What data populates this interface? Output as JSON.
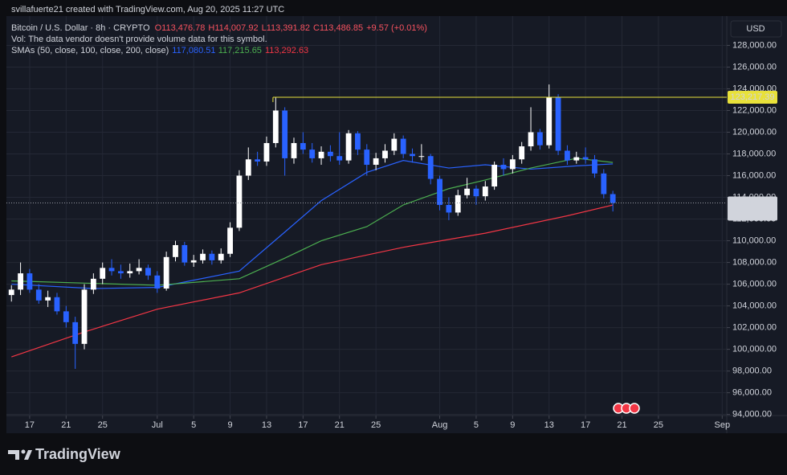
{
  "chart_data": {
    "type": "candlestick",
    "title": "svillafuerte21 created with TradingView.com, Aug 20, 2025 11:27 UTC",
    "symbol": "Bitcoin / U.S. Dollar · 8h · CRYPTO",
    "ohlc_labels": [
      "O113,476.78",
      "H114,007.92",
      "L113,391.82",
      "C113,486.85",
      "+9.57 (+0.01%)"
    ],
    "volume_note": "Vol: The data vendor doesn't provide volume data for this symbol.",
    "sma_legend": "SMAs (50, close, 100, close, 200, close)",
    "sma_value_labels": [
      "117,080.51",
      "117,215.65",
      "113,292.63"
    ],
    "currency": "USD",
    "brand": "TradingView",
    "up_color": "#ffffff",
    "down_color": "#2962ff",
    "x": [
      166,
      167,
      168,
      169,
      170,
      171,
      172,
      173,
      174,
      175,
      176,
      177,
      178,
      179,
      180,
      181,
      182,
      183,
      184,
      185,
      186,
      187,
      188,
      189,
      190,
      191,
      192,
      193,
      194,
      195,
      196,
      197,
      198,
      199,
      200,
      201,
      202,
      203,
      204,
      205,
      206,
      207,
      208,
      209,
      210,
      211,
      212,
      213,
      214,
      215,
      216,
      217,
      218,
      219,
      220,
      221,
      222,
      223,
      224,
      225,
      226,
      227,
      228,
      229,
      230,
      231,
      232
    ],
    "open": [
      105000,
      105500,
      107000,
      105500,
      104500,
      104800,
      103500,
      102500,
      100500,
      105500,
      106500,
      107500,
      107200,
      107000,
      107200,
      107500,
      106800,
      105600,
      108500,
      109600,
      108000,
      108200,
      108800,
      108200,
      108800,
      111200,
      116000,
      117500,
      117300,
      119000,
      122000,
      117600,
      119000,
      118400,
      117600,
      118200,
      117800,
      117400,
      119900,
      118400,
      117000,
      117600,
      118300,
      119400,
      118000,
      117800,
      117800,
      115700,
      113300,
      112600,
      114200,
      114800,
      114100,
      115000,
      117000,
      116600,
      117500,
      118700,
      120000,
      118800,
      123200,
      118300,
      117400,
      117700,
      117500,
      116200,
      114300
    ],
    "high": [
      105900,
      108000,
      107400,
      106000,
      105400,
      105200,
      104000,
      103000,
      106000,
      107000,
      108000,
      108300,
      107800,
      107900,
      108300,
      107800,
      107200,
      109000,
      110000,
      109900,
      108700,
      109200,
      109100,
      109300,
      111700,
      116500,
      118600,
      118200,
      119600,
      123200,
      122300,
      119500,
      120000,
      119000,
      118700,
      118800,
      120000,
      120200,
      120100,
      118900,
      118100,
      118900,
      119900,
      119700,
      118500,
      118900,
      118000,
      116000,
      114000,
      114700,
      115800,
      115100,
      115500,
      117300,
      117600,
      117900,
      119100,
      122300,
      120300,
      124400,
      123500,
      118800,
      118200,
      118600,
      117900,
      116600,
      114600
    ],
    "low": [
      104400,
      105000,
      105200,
      104200,
      103900,
      103200,
      102000,
      98200,
      100000,
      105100,
      106000,
      106800,
      106500,
      106600,
      106900,
      106400,
      105200,
      105400,
      108100,
      107700,
      107600,
      107900,
      107800,
      107900,
      108500,
      110900,
      115600,
      116900,
      116900,
      118600,
      116000,
      117100,
      118000,
      117200,
      117000,
      117300,
      117000,
      117100,
      117900,
      116000,
      116500,
      117200,
      117900,
      117600,
      117200,
      117400,
      115200,
      112800,
      111900,
      112300,
      113900,
      113300,
      113700,
      114700,
      116000,
      116200,
      117100,
      118300,
      118400,
      118500,
      117900,
      117000,
      117100,
      117100,
      115800,
      113900,
      112700
    ],
    "close": [
      105500,
      107000,
      105500,
      104500,
      104800,
      103500,
      102500,
      100500,
      105500,
      106500,
      107500,
      107200,
      107000,
      107200,
      107500,
      106800,
      105600,
      108500,
      109600,
      108000,
      108200,
      108800,
      108200,
      108800,
      111200,
      116000,
      117500,
      117300,
      119000,
      122000,
      117600,
      119000,
      118400,
      117600,
      118200,
      117800,
      117400,
      119900,
      118400,
      117000,
      117600,
      118300,
      119400,
      118000,
      117800,
      117800,
      115700,
      113300,
      112600,
      114200,
      114800,
      114100,
      115000,
      117000,
      116600,
      117500,
      118700,
      120000,
      118800,
      123200,
      118300,
      117400,
      117700,
      117500,
      116200,
      114300,
      113486.85
    ],
    "series": [
      {
        "name": "SMA 50",
        "color": "#2962ff",
        "x": [
          166,
          175,
          182,
          191,
          196,
          200,
          205,
          209,
          214,
          218,
          223,
          228,
          232
        ],
        "values": [
          106000,
          105600,
          105700,
          107200,
          110800,
          113700,
          116300,
          117400,
          116700,
          117000,
          116600,
          116900,
          117080.51
        ]
      },
      {
        "name": "SMA 100",
        "color": "#4caf50",
        "x": [
          166,
          182,
          191,
          196,
          200,
          205,
          209,
          214,
          218,
          223,
          228,
          232
        ],
        "values": [
          106300,
          105900,
          106500,
          108400,
          110000,
          111300,
          113300,
          114800,
          115600,
          116700,
          117600,
          117215.65
        ]
      },
      {
        "name": "SMA 200",
        "color": "#f23645",
        "x": [
          166,
          174,
          182,
          191,
          200,
          209,
          218,
          227,
          232
        ],
        "values": [
          99300,
          101600,
          103700,
          105200,
          107800,
          109400,
          110700,
          112300,
          113292.63
        ]
      }
    ],
    "hline": {
      "value": 123217.39,
      "label": "123,217.39",
      "start": 194.7,
      "color": "#e8e13a"
    },
    "last_price": {
      "value": 113486.85,
      "label": "113,486.85",
      "countdown": "04:32:09"
    },
    "xlim": [
      165.45,
      244.5
    ],
    "ylim": [
      93900,
      130700
    ],
    "grid": true,
    "xticks": [
      {
        "value": 168,
        "label": "17"
      },
      {
        "value": 172,
        "label": "21"
      },
      {
        "value": 176,
        "label": "25"
      },
      {
        "value": 182,
        "label": "Jul"
      },
      {
        "value": 186,
        "label": "5"
      },
      {
        "value": 190,
        "label": "9"
      },
      {
        "value": 194,
        "label": "13"
      },
      {
        "value": 198,
        "label": "17"
      },
      {
        "value": 202,
        "label": "21"
      },
      {
        "value": 206,
        "label": "25"
      },
      {
        "value": 213,
        "label": "Aug"
      },
      {
        "value": 217,
        "label": "5"
      },
      {
        "value": 221,
        "label": "9"
      },
      {
        "value": 225,
        "label": "13"
      },
      {
        "value": 229,
        "label": "17"
      },
      {
        "value": 233,
        "label": "21"
      },
      {
        "value": 237,
        "label": "25"
      },
      {
        "value": 244,
        "label": "Sep"
      }
    ],
    "yticks": [
      {
        "value": 94000,
        "label": "94,000.00"
      },
      {
        "value": 96000,
        "label": "96,000.00"
      },
      {
        "value": 98000,
        "label": "98,000.00"
      },
      {
        "value": 100000,
        "label": "100,000.00"
      },
      {
        "value": 102000,
        "label": "102,000.00"
      },
      {
        "value": 104000,
        "label": "104,000.00"
      },
      {
        "value": 106000,
        "label": "106,000.00"
      },
      {
        "value": 108000,
        "label": "108,000.00"
      },
      {
        "value": 110000,
        "label": "110,000.00"
      },
      {
        "value": 112000,
        "label": "112,000.00"
      },
      {
        "value": 114000,
        "label": "114,000.00"
      },
      {
        "value": 116000,
        "label": "116,000.00"
      },
      {
        "value": 118000,
        "label": "118,000.00"
      },
      {
        "value": 120000,
        "label": "120,000.00"
      },
      {
        "value": 122000,
        "label": "122,000.00"
      },
      {
        "value": 124000,
        "label": "124,000.00"
      },
      {
        "value": 126000,
        "label": "126,000.00"
      },
      {
        "value": 128000,
        "label": "128,000.00"
      }
    ]
  }
}
